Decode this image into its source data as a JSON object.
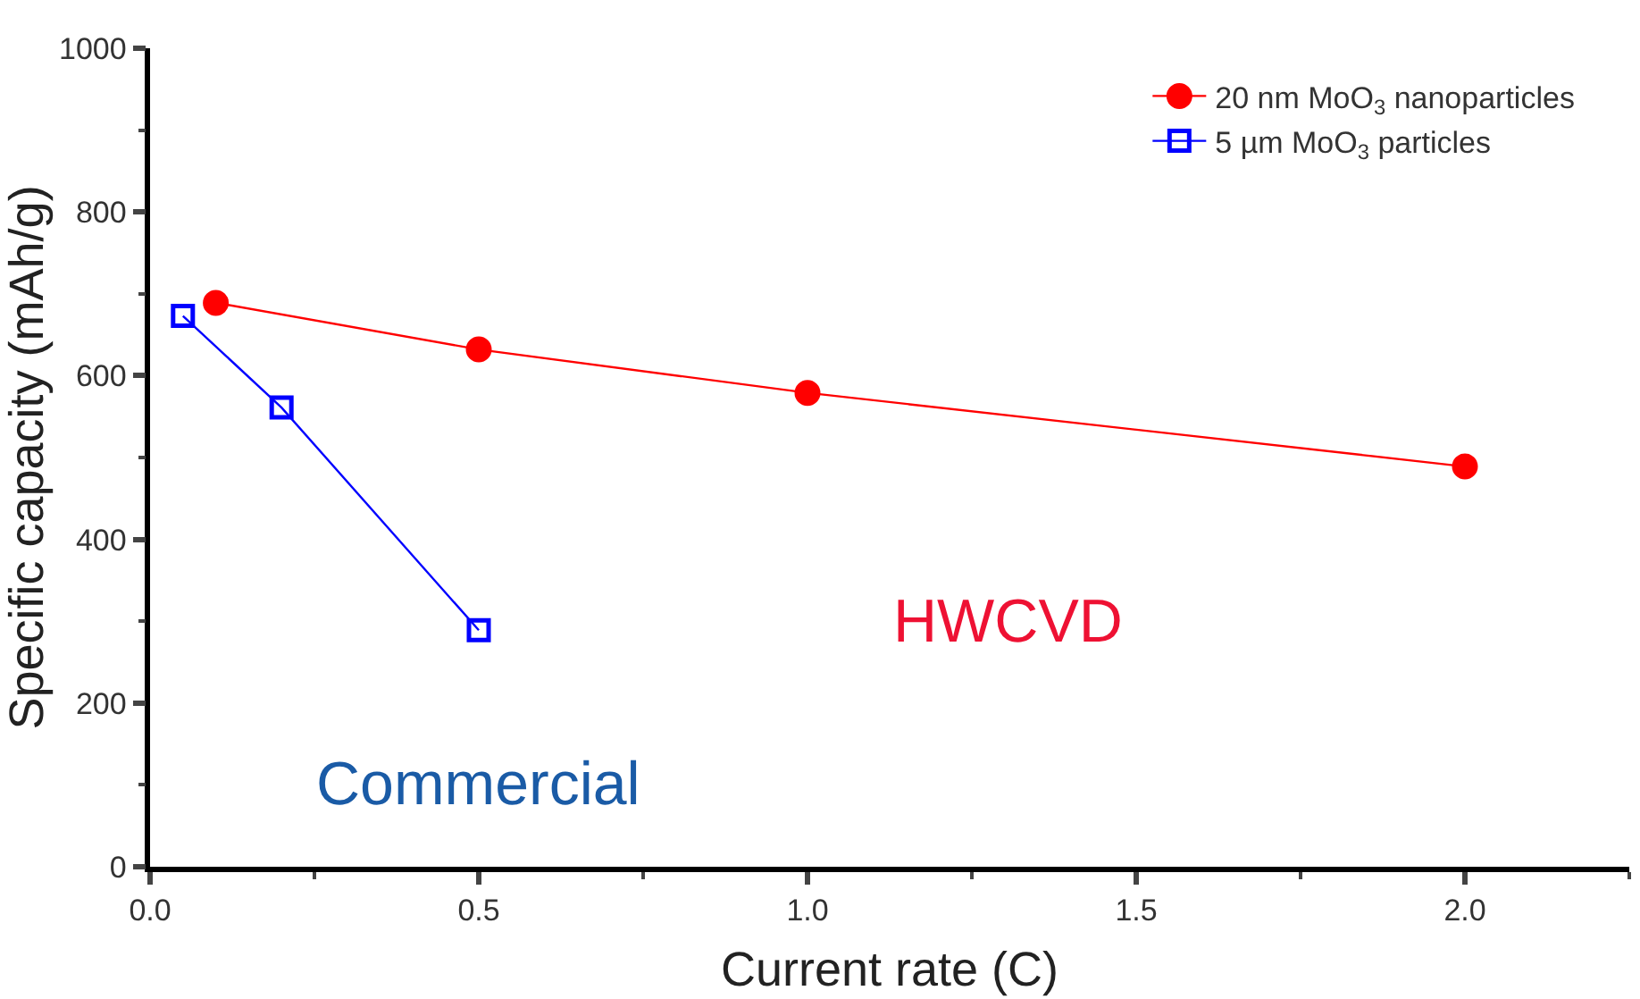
{
  "chart_data": {
    "type": "line",
    "xlabel": "Current rate (C)",
    "ylabel": "Specific capacity (mAh/g)",
    "xlim": [
      0,
      2.25
    ],
    "xticks": [
      {
        "value": 0,
        "label": "0.0"
      },
      0.5,
      {
        "value": 1,
        "label": "1.0"
      },
      1.5,
      {
        "value": 2,
        "label": "2.0"
      }
    ],
    "ylim": [
      0,
      1000
    ],
    "yticks": [
      0,
      200,
      400,
      600,
      800,
      1000
    ],
    "legend": "top right",
    "line_style": "solid",
    "series": [
      {
        "name": "20 nm MoO$_{3}$ nanoparticles",
        "color": "#ff0000",
        "marker": "circle",
        "x": [
          0.1,
          0.5,
          1.0,
          2.0
        ],
        "values": [
          689,
          632,
          579,
          489
        ]
      },
      {
        "name": "5 µm MoO$_{3}$ particles",
        "color": "#0000ff",
        "marker": "square",
        "x": [
          0.05,
          0.2,
          0.5
        ],
        "values": [
          673,
          561,
          289
        ]
      }
    ],
    "annotations": [
      "HWCVD",
      "Commercial"
    ]
  }
}
